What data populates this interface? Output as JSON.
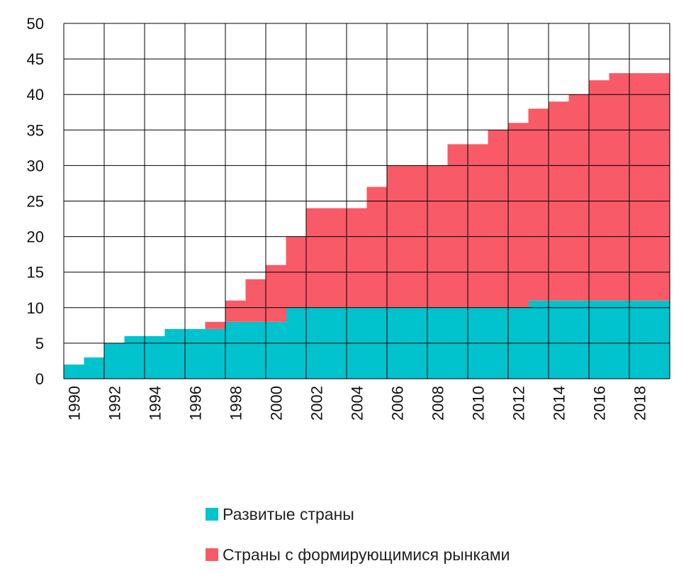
{
  "chart_data": {
    "type": "area",
    "step": true,
    "stacked": true,
    "x": [
      1990,
      1991,
      1992,
      1993,
      1994,
      1995,
      1996,
      1997,
      1998,
      1999,
      2000,
      2001,
      2002,
      2003,
      2004,
      2005,
      2006,
      2007,
      2008,
      2009,
      2010,
      2011,
      2012,
      2013,
      2014,
      2015,
      2016,
      2017,
      2018,
      2019
    ],
    "series": [
      {
        "name": "Развитые страны",
        "color": "#00c3cd",
        "values": [
          2,
          3,
          5,
          6,
          6,
          7,
          7,
          7,
          8,
          8,
          8,
          10,
          10,
          10,
          10,
          10,
          10,
          10,
          10,
          10,
          10,
          10,
          10,
          11,
          11,
          11,
          11,
          11,
          11,
          11
        ]
      },
      {
        "name": "Страны с формирующимися рынками",
        "color": "#f95a67",
        "values": [
          0,
          0,
          0,
          0,
          0,
          0,
          0,
          1,
          3,
          6,
          8,
          10,
          14,
          14,
          14,
          17,
          20,
          20,
          20,
          23,
          23,
          25,
          26,
          27,
          28,
          29,
          31,
          32,
          32,
          32
        ]
      }
    ],
    "ylim": [
      0,
      50
    ],
    "yticks": [
      0,
      5,
      10,
      15,
      20,
      25,
      30,
      35,
      40,
      45,
      50
    ],
    "xticks": [
      1990,
      1992,
      1994,
      1996,
      1998,
      2000,
      2002,
      2004,
      2006,
      2008,
      2010,
      2012,
      2014,
      2016,
      2018
    ],
    "grid": true,
    "xlabel": "",
    "ylabel": "",
    "title": "",
    "legend_position": "bottom"
  }
}
